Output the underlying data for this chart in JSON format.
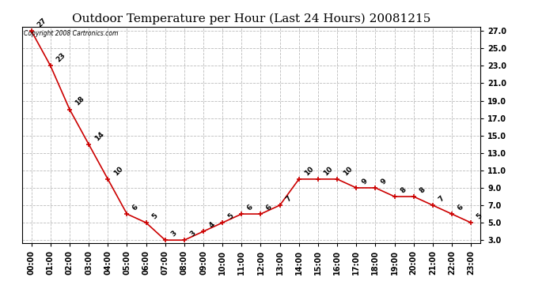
{
  "title": "Outdoor Temperature per Hour (Last 24 Hours) 20081215",
  "copyright_text": "Copyright 2008 Cartronics.com",
  "hours": [
    "00:00",
    "01:00",
    "02:00",
    "03:00",
    "04:00",
    "05:00",
    "06:00",
    "07:00",
    "08:00",
    "09:00",
    "10:00",
    "11:00",
    "12:00",
    "13:00",
    "14:00",
    "15:00",
    "16:00",
    "17:00",
    "18:00",
    "19:00",
    "20:00",
    "21:00",
    "22:00",
    "23:00"
  ],
  "temps": [
    27,
    23,
    18,
    14,
    10,
    6,
    5,
    3,
    3,
    4,
    5,
    6,
    6,
    7,
    10,
    10,
    10,
    9,
    9,
    8,
    8,
    7,
    6,
    5
  ],
  "line_color": "#cc0000",
  "marker_color": "#cc0000",
  "bg_color": "#ffffff",
  "grid_color": "#bbbbbb",
  "ylim_min": 3.0,
  "ylim_max": 27.0,
  "yticks": [
    3.0,
    5.0,
    7.0,
    9.0,
    11.0,
    13.0,
    15.0,
    17.0,
    19.0,
    21.0,
    23.0,
    25.0,
    27.0
  ],
  "title_fontsize": 11,
  "label_fontsize": 6.5,
  "tick_fontsize": 7,
  "copyright_fontsize": 5.5
}
